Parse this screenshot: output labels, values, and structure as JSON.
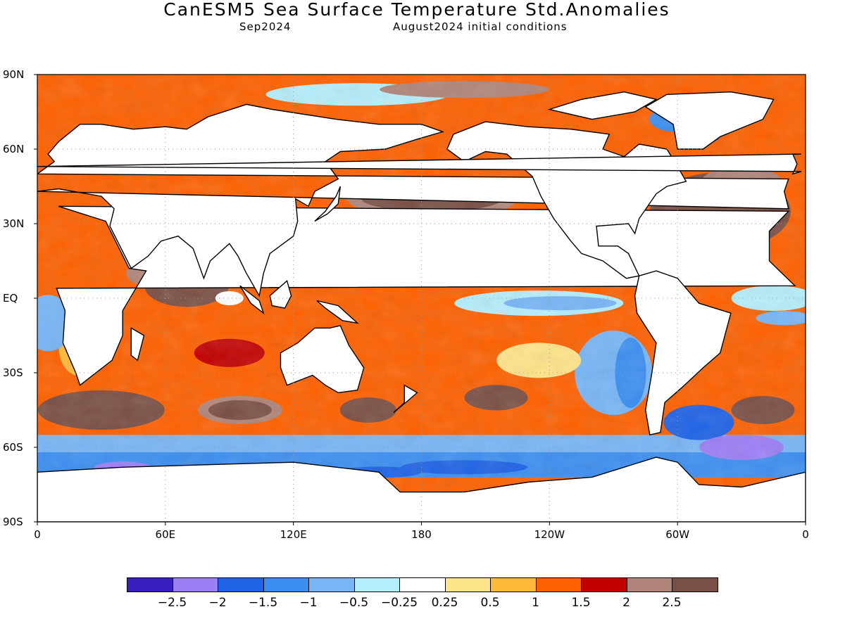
{
  "title": "CanESM5 Sea Surface Temperature Std.Anomalies",
  "subtitle_left": "Sep2024",
  "subtitle_right": "August2024 initial conditions",
  "lat_labels": [
    "90N",
    "60N",
    "30N",
    "EQ",
    "30S",
    "60S",
    "90S"
  ],
  "lon_labels": [
    "0",
    "60E",
    "120E",
    "180",
    "120W",
    "60W",
    "0"
  ],
  "colorbar": {
    "colors": [
      "#3a1fbf",
      "#9b7ff5",
      "#1f63e6",
      "#3b8ef0",
      "#77b5f5",
      "#b4edfb",
      "#ffffff",
      "#fde489",
      "#fdb93a",
      "#fd6000",
      "#c20000",
      "#b08478",
      "#7a4f45"
    ],
    "labels": [
      "−2.5",
      "−2",
      "−1.5",
      "−1",
      "−0.5",
      "−0.25",
      "0.25",
      "0.5",
      "1",
      "1.5",
      "2",
      "2.5"
    ]
  },
  "colors": {
    "land": "#ffffff",
    "coast": "#000000",
    "grid": "#999999",
    "frame": "#000000"
  }
}
